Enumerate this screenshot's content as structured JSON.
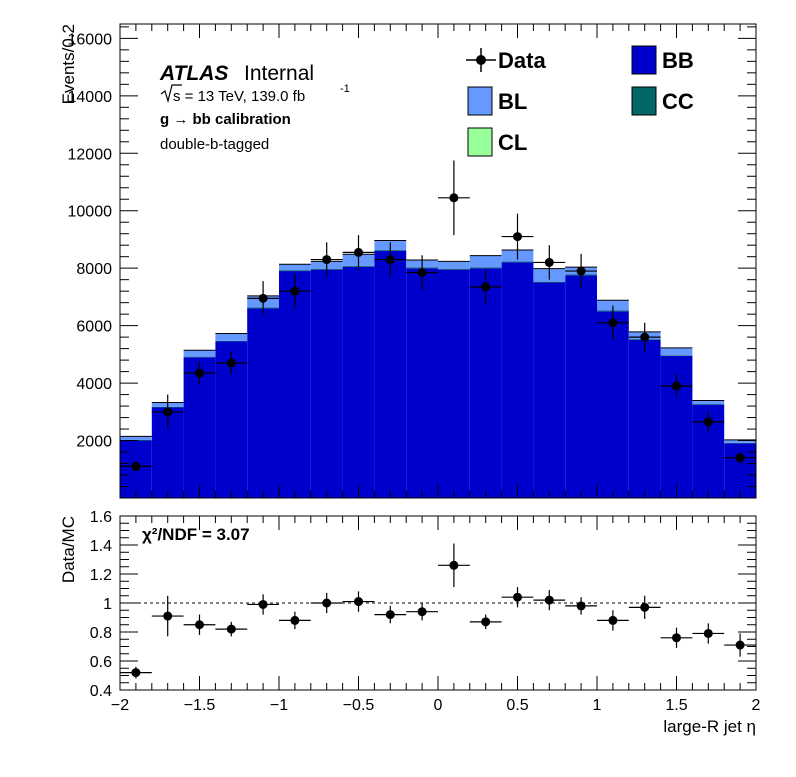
{
  "chart_data": {
    "type": "bar",
    "x_edges": [
      -2,
      -1.8,
      -1.6,
      -1.4,
      -1.2,
      -1.0,
      -0.8,
      -0.6,
      -0.4,
      -0.2,
      0.0,
      0.2,
      0.4,
      0.6,
      0.8,
      1.0,
      1.2,
      1.4,
      1.6,
      1.8,
      2.0
    ],
    "x_centers": [
      -1.9,
      -1.7,
      -1.5,
      -1.3,
      -1.1,
      -0.9,
      -0.7,
      -0.5,
      -0.3,
      -0.1,
      0.1,
      0.3,
      0.5,
      0.7,
      0.9,
      1.1,
      1.3,
      1.5,
      1.7,
      1.9
    ],
    "xlabel": "large-R jet η",
    "main": {
      "ylabel": "Events/0.2",
      "ylim": [
        0,
        16500
      ],
      "yticks": [
        2000,
        4000,
        6000,
        8000,
        10000,
        12000,
        14000,
        16000
      ],
      "stack": [
        {
          "name": "BB",
          "color": "#0000cc",
          "values": [
            2000,
            3150,
            4900,
            5450,
            6600,
            7900,
            7950,
            8050,
            8600,
            8000,
            7950,
            8000,
            8200,
            7500,
            7750,
            6500,
            5500,
            4950,
            3250,
            1900
          ]
        },
        {
          "name": "CC",
          "color": "#006666",
          "values": [
            20,
            20,
            20,
            20,
            30,
            30,
            30,
            30,
            30,
            30,
            30,
            30,
            30,
            30,
            30,
            30,
            30,
            20,
            20,
            20
          ]
        },
        {
          "name": "BL",
          "color": "#6699ff",
          "values": [
            120,
            150,
            220,
            250,
            400,
            200,
            250,
            400,
            330,
            250,
            250,
            400,
            400,
            450,
            250,
            350,
            250,
            250,
            120,
            100
          ]
        },
        {
          "name": "CL",
          "color": "#99ff99",
          "values": [
            5,
            5,
            5,
            5,
            5,
            5,
            5,
            5,
            5,
            5,
            5,
            5,
            5,
            5,
            5,
            5,
            5,
            5,
            5,
            5
          ]
        }
      ],
      "data": {
        "name": "Data",
        "values": [
          1100,
          3000,
          4350,
          4700,
          6950,
          7200,
          8300,
          8550,
          8300,
          7850,
          10450,
          7350,
          9100,
          8200,
          7900,
          6100,
          5600,
          3900,
          2650,
          1400
        ],
        "errors": [
          200,
          600,
          400,
          400,
          600,
          600,
          600,
          600,
          600,
          600,
          1300,
          600,
          800,
          600,
          600,
          600,
          500,
          400,
          350,
          200
        ]
      }
    },
    "ratio": {
      "ylabel": "Data/MC",
      "ylim": [
        0.4,
        1.6
      ],
      "yticks": [
        0.4,
        0.6,
        0.8,
        1.0,
        1.2,
        1.4,
        1.6
      ],
      "ytick_labels": [
        "0.4",
        "0.6",
        "0.8",
        "1",
        "1.2",
        "1.4",
        "1.6"
      ],
      "values": [
        0.52,
        0.91,
        0.85,
        0.82,
        0.99,
        0.88,
        1.0,
        1.01,
        0.92,
        0.94,
        1.26,
        0.87,
        1.04,
        1.02,
        0.98,
        0.88,
        0.97,
        0.76,
        0.79,
        0.71
      ],
      "errors": [
        0.04,
        0.14,
        0.07,
        0.05,
        0.07,
        0.06,
        0.07,
        0.07,
        0.06,
        0.06,
        0.15,
        0.05,
        0.07,
        0.07,
        0.06,
        0.07,
        0.08,
        0.07,
        0.07,
        0.08
      ],
      "reference_line": 1
    },
    "xticks": [
      -2,
      -1.5,
      -1,
      -0.5,
      0,
      0.5,
      1,
      1.5,
      2
    ],
    "xtick_labels": [
      "−2",
      "−1.5",
      "−1",
      "−0.5",
      "0",
      "0.5",
      "1",
      "1.5",
      "2"
    ],
    "legend_placement": "top-right"
  },
  "labels": {
    "atlas": "ATLAS",
    "internal": "Internal",
    "sqrt_s": "s = 13 TeV, 139.0 fb",
    "lumi_exp": "-1",
    "calibration": "g  → bb calibration",
    "tagging": "double-b-tagged",
    "chi2": "χ²/NDF = 3.07"
  }
}
